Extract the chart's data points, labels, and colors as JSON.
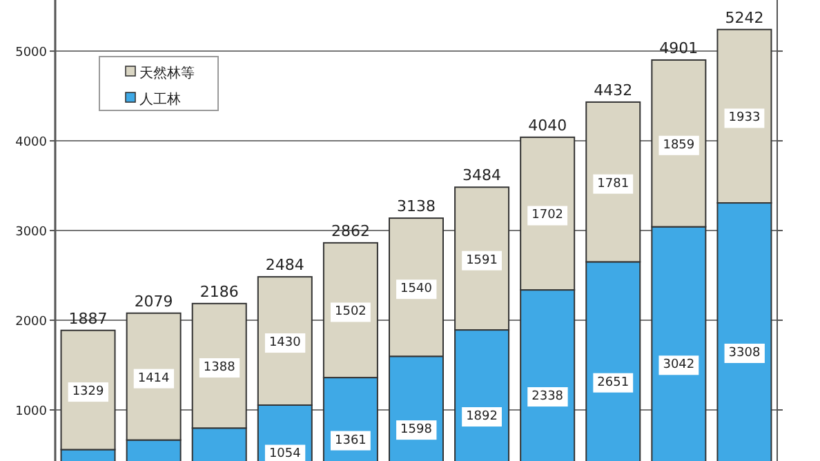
{
  "chart_data": {
    "type": "bar",
    "stacked": true,
    "categories": [
      null,
      null,
      null,
      null,
      null,
      null,
      null,
      null,
      null,
      null,
      null
    ],
    "series": [
      {
        "name": "人工林",
        "color": "#3fa9e6",
        "values": [
          558,
          665,
          798,
          1054,
          1361,
          1598,
          1892,
          2338,
          2651,
          3042,
          3308
        ],
        "value_labels": [
          null,
          null,
          null,
          "1054",
          "1361",
          "1598",
          "1892",
          "2338",
          "2651",
          "3042",
          "3308"
        ]
      },
      {
        "name": "天然林等",
        "color": "#dad6c4",
        "values": [
          1329,
          1414,
          1388,
          1430,
          1502,
          1540,
          1591,
          1702,
          1781,
          1859,
          1933
        ],
        "value_labels": [
          "1329",
          "1414",
          "1388",
          "1430",
          "1502",
          "1540",
          "1591",
          "1702",
          "1781",
          "1859",
          "1933"
        ]
      }
    ],
    "totals": [
      "1887",
      "2079",
      "2186",
      "2484",
      "2862",
      "3138",
      "3484",
      "4040",
      "4432",
      "4901",
      "5242"
    ],
    "ylim": [
      0,
      5570
    ],
    "yticks": [
      1000,
      2000,
      3000,
      4000,
      5000
    ],
    "grid": "y",
    "legend": "top left"
  }
}
